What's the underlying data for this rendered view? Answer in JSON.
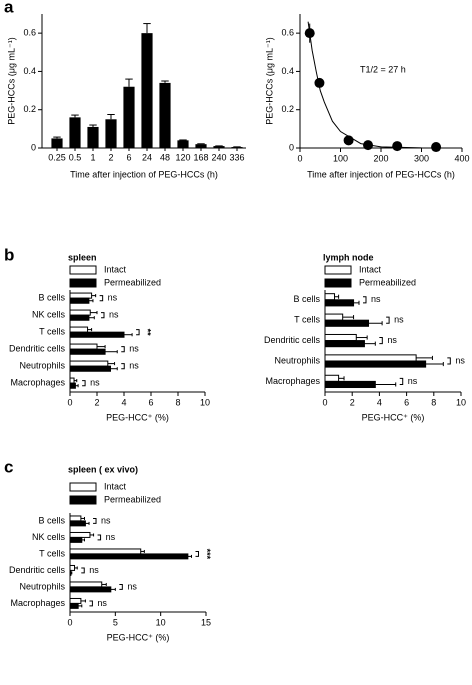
{
  "chart_data": [
    {
      "type": "bar",
      "panel": "a",
      "ylabel": "PEG-HCCs (μg mL⁻¹)",
      "xlabel": "Time after injection of PEG-HCCs (h)",
      "categories": [
        "0.25",
        "0.5",
        "1",
        "2",
        "6",
        "24",
        "48",
        "120",
        "168",
        "240",
        "336"
      ],
      "values": [
        0.05,
        0.16,
        0.11,
        0.15,
        0.32,
        0.6,
        0.34,
        0.04,
        0.02,
        0.01,
        0.005
      ],
      "errors": [
        0.007,
        0.012,
        0.01,
        0.025,
        0.04,
        0.05,
        0.01,
        0.002,
        0.002,
        0.001,
        0.001
      ],
      "color": "#000000",
      "ylim": [
        0,
        0.7
      ],
      "yticks": [
        0,
        0.2,
        0.4,
        0.6
      ]
    },
    {
      "type": "scatter",
      "ylabel": "PEG-HCCs (μg mL⁻¹)",
      "xlabel": "Time after injection of PEG-HCCs (h)",
      "annotation": "T1/2 = 27 h",
      "x": [
        24,
        48,
        120,
        168,
        240,
        336
      ],
      "values": [
        0.6,
        0.34,
        0.04,
        0.015,
        0.01,
        0.005
      ],
      "errors": [
        0.05,
        0.01,
        0.002,
        0.002,
        0.001,
        0.001
      ],
      "fit": {
        "x": [
          20,
          30,
          40,
          50,
          60,
          80,
          100,
          150,
          200,
          300,
          400
        ],
        "values": [
          0.66,
          0.51,
          0.4,
          0.3,
          0.24,
          0.14,
          0.086,
          0.023,
          0.006,
          0.0005,
          0
        ]
      },
      "color": "#000000",
      "xlim": [
        0,
        400
      ],
      "xticks": [
        0,
        100,
        200,
        300,
        400
      ],
      "ylim": [
        0,
        0.7
      ],
      "yticks": [
        0,
        0.2,
        0.4,
        0.6
      ]
    },
    {
      "type": "hbar",
      "panel": "b",
      "title": "spleen",
      "xlabel": "PEG-HCC⁺ (%)",
      "categories": [
        "B cells",
        "NK cells",
        "T cells",
        "Dendritic cells",
        "Neutrophils",
        "Macrophages"
      ],
      "series": [
        {
          "name": "Intact",
          "color": "#ffffff",
          "values": [
            1.6,
            1.5,
            1.3,
            2.0,
            2.8,
            0.3
          ],
          "errors": [
            0.3,
            0.5,
            0.3,
            0.6,
            0.5,
            0.2
          ]
        },
        {
          "name": "Permeabilized",
          "color": "#000000",
          "values": [
            1.4,
            1.4,
            4.0,
            2.6,
            3.0,
            0.4
          ],
          "errors": [
            0.3,
            0.4,
            0.6,
            0.9,
            0.5,
            0.2
          ]
        }
      ],
      "significance": [
        "ns",
        "ns",
        "**",
        "ns",
        "ns",
        "ns"
      ],
      "xlim": [
        0,
        10
      ],
      "xticks": [
        0,
        2,
        4,
        6,
        8,
        10
      ]
    },
    {
      "type": "hbar",
      "title": "lymph node",
      "xlabel": "PEG-HCC⁺ (%)",
      "categories": [
        "B cells",
        "T cells",
        "Dendritic cells",
        "Neutrophils",
        "Macrophages"
      ],
      "series": [
        {
          "name": "Intact",
          "color": "#ffffff",
          "values": [
            0.7,
            1.3,
            2.3,
            6.7,
            1.0
          ],
          "errors": [
            0.3,
            0.8,
            0.8,
            1.2,
            0.4
          ]
        },
        {
          "name": "Permeabilized",
          "color": "#000000",
          "values": [
            2.1,
            3.2,
            2.9,
            7.4,
            3.7
          ],
          "errors": [
            0.4,
            1.0,
            0.8,
            1.3,
            1.5
          ]
        }
      ],
      "significance": [
        "ns",
        "ns",
        "ns",
        "ns",
        "ns"
      ],
      "xlim": [
        0,
        10
      ],
      "xticks": [
        0,
        2,
        4,
        6,
        8,
        10
      ]
    },
    {
      "type": "hbar",
      "panel": "c",
      "title": "spleen ( ex vivo)",
      "xlabel": "PEG-HCC⁺ (%)",
      "categories": [
        "B cells",
        "NK cells",
        "T cells",
        "Dendritic cells",
        "Neutrophils",
        "Macrophages"
      ],
      "series": [
        {
          "name": "Intact",
          "color": "#ffffff",
          "values": [
            1.2,
            2.2,
            7.8,
            0.5,
            3.5,
            1.2
          ],
          "errors": [
            0.4,
            0.4,
            0.4,
            0.3,
            0.5,
            0.5
          ]
        },
        {
          "name": "Permeabilized",
          "color": "#000000",
          "values": [
            1.7,
            1.3,
            13.0,
            0.1,
            4.5,
            0.9
          ],
          "errors": [
            0.4,
            0.3,
            0.4,
            0.1,
            0.5,
            0.4
          ]
        }
      ],
      "significance": [
        "ns",
        "ns",
        "***",
        "ns",
        "ns",
        "ns"
      ],
      "xlim": [
        0,
        15
      ],
      "xticks": [
        0,
        5,
        10,
        15
      ]
    }
  ]
}
